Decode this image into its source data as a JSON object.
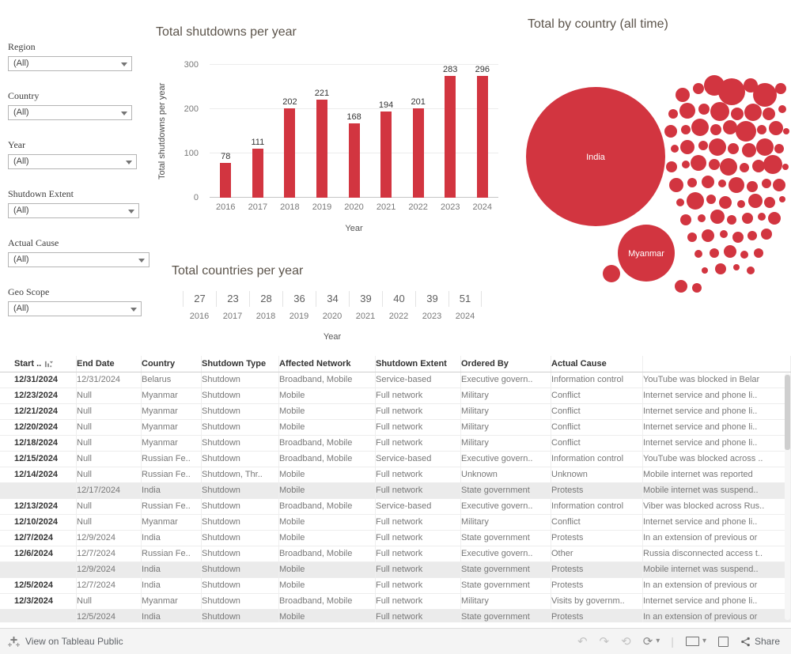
{
  "accent": "#d23540",
  "filters": {
    "items": [
      {
        "label": "Region",
        "value": "(All)"
      },
      {
        "label": "Country",
        "value": "(All)"
      },
      {
        "label": "Year",
        "value": "(All)"
      },
      {
        "label": "Shutdown Extent",
        "value": "(All)"
      },
      {
        "label": "Actual Cause",
        "value": "(All)"
      },
      {
        "label": "Geo Scope",
        "value": "(All)"
      }
    ]
  },
  "chart_data": [
    {
      "type": "bar",
      "title": "Total shutdowns per year",
      "categories": [
        "2016",
        "2017",
        "2018",
        "2019",
        "2020",
        "2021",
        "2022",
        "2023",
        "2024"
      ],
      "values": [
        78,
        111,
        202,
        221,
        168,
        194,
        201,
        283,
        296
      ],
      "xlabel": "Year",
      "ylabel": "Total shutdowns per year",
      "ylim": [
        0,
        300
      ],
      "yticks": [
        0,
        100,
        200,
        300
      ],
      "bar_color": "#d23540",
      "grid": "horizontal"
    },
    {
      "type": "bubble",
      "title": "Total by country (all time)",
      "color": "#d23540",
      "labeled_bubbles": [
        "India",
        "Myanmar"
      ],
      "bubbles": [
        [
          98,
          150,
          88,
          "India"
        ],
        [
          162,
          272,
          36,
          "Myanmar"
        ],
        [
          208,
          72,
          9
        ],
        [
          228,
          64,
          7
        ],
        [
          248,
          60,
          13
        ],
        [
          270,
          68,
          17
        ],
        [
          294,
          60,
          9
        ],
        [
          312,
          72,
          15
        ],
        [
          332,
          64,
          7
        ],
        [
          196,
          96,
          6
        ],
        [
          214,
          92,
          10
        ],
        [
          235,
          90,
          7
        ],
        [
          255,
          93,
          12
        ],
        [
          277,
          96,
          8
        ],
        [
          297,
          94,
          11
        ],
        [
          317,
          96,
          8
        ],
        [
          334,
          90,
          5
        ],
        [
          193,
          118,
          8
        ],
        [
          212,
          116,
          6
        ],
        [
          230,
          113,
          11
        ],
        [
          250,
          116,
          7
        ],
        [
          268,
          113,
          9
        ],
        [
          288,
          118,
          13
        ],
        [
          308,
          116,
          6
        ],
        [
          326,
          114,
          9
        ],
        [
          339,
          118,
          4
        ],
        [
          198,
          140,
          5
        ],
        [
          214,
          138,
          9
        ],
        [
          234,
          136,
          6
        ],
        [
          252,
          138,
          11
        ],
        [
          272,
          140,
          7
        ],
        [
          292,
          142,
          9
        ],
        [
          312,
          138,
          11
        ],
        [
          330,
          140,
          6
        ],
        [
          194,
          163,
          7
        ],
        [
          212,
          160,
          5
        ],
        [
          228,
          158,
          10
        ],
        [
          248,
          160,
          7
        ],
        [
          266,
          163,
          11
        ],
        [
          286,
          164,
          6
        ],
        [
          304,
          162,
          8
        ],
        [
          322,
          160,
          12
        ],
        [
          338,
          163,
          4
        ],
        [
          200,
          186,
          9
        ],
        [
          220,
          183,
          6
        ],
        [
          240,
          182,
          8
        ],
        [
          258,
          184,
          5
        ],
        [
          276,
          186,
          10
        ],
        [
          296,
          188,
          7
        ],
        [
          314,
          184,
          6
        ],
        [
          330,
          186,
          8
        ],
        [
          205,
          208,
          5
        ],
        [
          224,
          206,
          11
        ],
        [
          244,
          204,
          6
        ],
        [
          262,
          208,
          8
        ],
        [
          282,
          210,
          5
        ],
        [
          300,
          206,
          9
        ],
        [
          318,
          208,
          7
        ],
        [
          334,
          204,
          4
        ],
        [
          212,
          230,
          7
        ],
        [
          232,
          228,
          5
        ],
        [
          252,
          226,
          9
        ],
        [
          270,
          230,
          6
        ],
        [
          290,
          228,
          7
        ],
        [
          308,
          226,
          5
        ],
        [
          324,
          228,
          8
        ],
        [
          220,
          252,
          6
        ],
        [
          240,
          250,
          8
        ],
        [
          260,
          248,
          5
        ],
        [
          278,
          252,
          7
        ],
        [
          296,
          250,
          6
        ],
        [
          314,
          248,
          7
        ],
        [
          228,
          273,
          5
        ],
        [
          248,
          272,
          6
        ],
        [
          268,
          270,
          8
        ],
        [
          286,
          274,
          5
        ],
        [
          304,
          272,
          6
        ],
        [
          236,
          294,
          4
        ],
        [
          256,
          292,
          7
        ],
        [
          276,
          290,
          4
        ],
        [
          294,
          294,
          5
        ],
        [
          118,
          298,
          11
        ],
        [
          206,
          314,
          8
        ],
        [
          226,
          316,
          6
        ]
      ]
    },
    {
      "type": "table",
      "title": "Total countries per year",
      "categories": [
        "2016",
        "2017",
        "2018",
        "2019",
        "2020",
        "2021",
        "2022",
        "2023",
        "2024"
      ],
      "values": [
        27,
        23,
        28,
        36,
        34,
        39,
        40,
        39,
        51
      ],
      "xlabel": "Year"
    }
  ],
  "table": {
    "columns": [
      "Start ..",
      "End Date",
      "Country",
      "Shutdown Type",
      "Affected Network",
      "Shutdown Extent",
      "Ordered By",
      "Actual Cause",
      ""
    ],
    "rows": [
      {
        "shaded": false,
        "cells": [
          "12/31/2024",
          "12/31/2024",
          "Belarus",
          "Shutdown",
          "Broadband, Mobile",
          "Service-based",
          "Executive govern..",
          "Information control",
          "YouTube was blocked in Belar"
        ]
      },
      {
        "shaded": false,
        "cells": [
          "12/23/2024",
          "Null",
          "Myanmar",
          "Shutdown",
          "Mobile",
          "Full network",
          "Military",
          "Conflict",
          "Internet service and phone li.."
        ]
      },
      {
        "shaded": false,
        "cells": [
          "12/21/2024",
          "Null",
          "Myanmar",
          "Shutdown",
          "Mobile",
          "Full network",
          "Military",
          "Conflict",
          "Internet service and phone li.."
        ]
      },
      {
        "shaded": false,
        "cells": [
          "12/20/2024",
          "Null",
          "Myanmar",
          "Shutdown",
          "Mobile",
          "Full network",
          "Military",
          "Conflict",
          "Internet service and phone li.."
        ]
      },
      {
        "shaded": false,
        "cells": [
          "12/18/2024",
          "Null",
          "Myanmar",
          "Shutdown",
          "Broadband, Mobile",
          "Full network",
          "Military",
          "Conflict",
          "Internet service and phone li.."
        ]
      },
      {
        "shaded": false,
        "cells": [
          "12/15/2024",
          "Null",
          "Russian Fe..",
          "Shutdown",
          "Broadband, Mobile",
          "Service-based",
          "Executive govern..",
          "Information control",
          "YouTube was blocked across .."
        ]
      },
      {
        "shaded": false,
        "cells": [
          "12/14/2024",
          "Null",
          "Russian Fe..",
          "Shutdown, Thr..",
          "Mobile",
          "Full network",
          "Unknown",
          "Unknown",
          "Mobile internet was reported"
        ]
      },
      {
        "shaded": true,
        "cells": [
          "",
          "12/17/2024",
          "India",
          "Shutdown",
          "Mobile",
          "Full network",
          "State government",
          "Protests",
          "Mobile internet was suspend.."
        ]
      },
      {
        "shaded": false,
        "cells": [
          "12/13/2024",
          "Null",
          "Russian Fe..",
          "Shutdown",
          "Broadband, Mobile",
          "Service-based",
          "Executive govern..",
          "Information control",
          "Viber was blocked across Rus.."
        ]
      },
      {
        "shaded": false,
        "cells": [
          "12/10/2024",
          "Null",
          "Myanmar",
          "Shutdown",
          "Mobile",
          "Full network",
          "Military",
          "Conflict",
          "Internet service and phone li.."
        ]
      },
      {
        "shaded": false,
        "cells": [
          "12/7/2024",
          "12/9/2024",
          "India",
          "Shutdown",
          "Mobile",
          "Full network",
          "State government",
          "Protests",
          "In an extension of previous or"
        ]
      },
      {
        "shaded": false,
        "cells": [
          "12/6/2024",
          "12/7/2024",
          "Russian Fe..",
          "Shutdown",
          "Broadband, Mobile",
          "Full network",
          "Executive govern..",
          "Other",
          "Russia disconnected access t.."
        ]
      },
      {
        "shaded": true,
        "cells": [
          "",
          "12/9/2024",
          "India",
          "Shutdown",
          "Mobile",
          "Full network",
          "State government",
          "Protests",
          "Mobile internet was suspend.."
        ]
      },
      {
        "shaded": false,
        "cells": [
          "12/5/2024",
          "12/7/2024",
          "India",
          "Shutdown",
          "Mobile",
          "Full network",
          "State government",
          "Protests",
          "In an extension of previous or"
        ]
      },
      {
        "shaded": false,
        "cells": [
          "12/3/2024",
          "Null",
          "Myanmar",
          "Shutdown",
          "Broadband, Mobile",
          "Full network",
          "Military",
          "Visits by governm..",
          "Internet service and phone li.."
        ]
      },
      {
        "shaded": true,
        "cells": [
          "",
          "12/5/2024",
          "India",
          "Shutdown",
          "Mobile",
          "Full network",
          "State government",
          "Protests",
          "In an extension of previous or"
        ]
      }
    ]
  },
  "footer": {
    "view_label": "View on Tableau Public",
    "share_label": "Share"
  },
  "icons": {
    "undo": "↶",
    "redo": "↷",
    "reset": "⟲",
    "refresh": "⟳",
    "caret": "▾",
    "separator": "|"
  }
}
